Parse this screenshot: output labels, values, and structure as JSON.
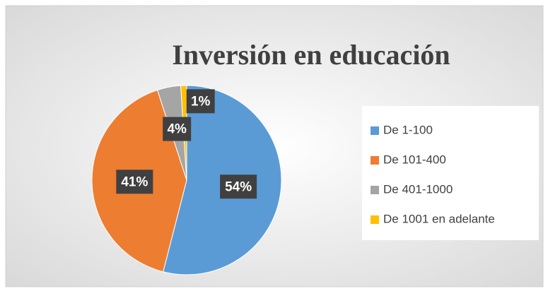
{
  "chart_data": {
    "type": "pie",
    "title": "Inversión en educación",
    "categories": [
      "De 1-100",
      "De 101-400",
      "De 401-1000",
      "De 1001 en adelante"
    ],
    "values": [
      54,
      41,
      4,
      1
    ],
    "value_labels": [
      "54%",
      "41%",
      "4%",
      "1%"
    ],
    "colors": [
      "#5b9bd5",
      "#ed7d31",
      "#a5a5a5",
      "#ffc000"
    ],
    "legend": "right"
  }
}
